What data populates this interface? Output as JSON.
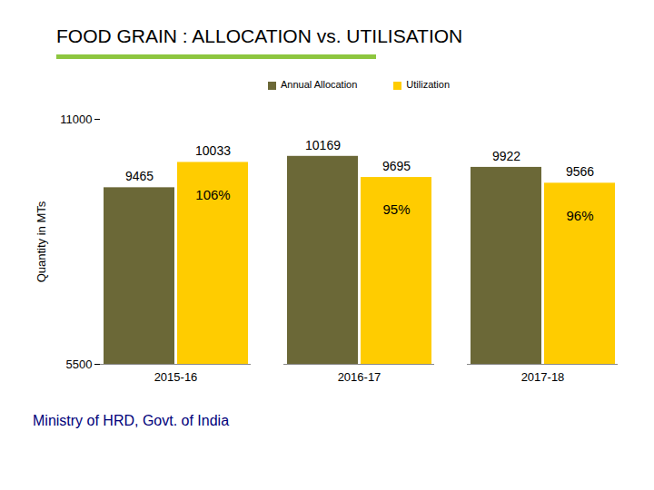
{
  "chart_data": {
    "type": "bar",
    "title": "FOOD GRAIN : ALLOCATION vs. UTILISATION",
    "y_label": "Quantity in MTs",
    "source": "Ministry of HRD, Govt. of India",
    "categories": [
      "2015-16",
      "2016-17",
      "2017-18"
    ],
    "series": [
      {
        "name": "Annual Allocation",
        "color": "#6b6837",
        "values": [
          9465,
          10169,
          9922
        ]
      },
      {
        "name": "Utilization",
        "color": "#ffcc00",
        "values": [
          10033,
          9695,
          9566
        ]
      }
    ],
    "annotations": [
      {
        "category": "2015-16",
        "series": "Utilization",
        "text": "106%"
      },
      {
        "category": "2016-17",
        "series": "Utilization",
        "text": "95%"
      },
      {
        "category": "2017-18",
        "series": "Utilization",
        "text": "96%"
      }
    ],
    "ylim": [
      5500,
      11000
    ],
    "yticks": [
      5500,
      11000
    ],
    "legend": "top",
    "data_labels": true,
    "grid": false
  }
}
